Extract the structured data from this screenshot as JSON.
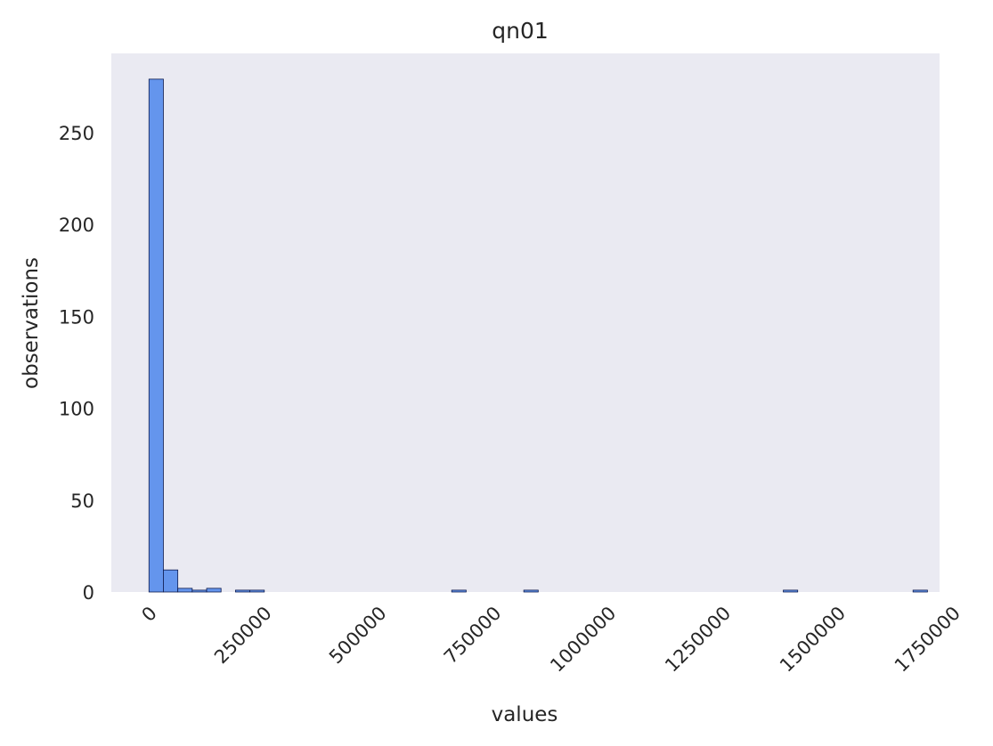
{
  "chart_data": {
    "type": "bar",
    "title": "qn01",
    "xlabel": "values",
    "ylabel": "observations",
    "xlim": [
      -82000,
      1722000
    ],
    "ylim": [
      0,
      293
    ],
    "grid": false,
    "background": "#eaeaf2",
    "bar_color": "#6495ed",
    "bar_edge_color": "#0d1a4d",
    "bin_width": 31400,
    "xticks": [
      0,
      250000,
      500000,
      750000,
      1000000,
      1250000,
      1500000,
      1750000
    ],
    "xtick_labels": [
      "0",
      "250000",
      "500000",
      "750000",
      "1000000",
      "1250000",
      "1500000",
      "1750000"
    ],
    "yticks": [
      0,
      50,
      100,
      150,
      200,
      250
    ],
    "ytick_labels": [
      "0",
      "50",
      "100",
      "150",
      "200",
      "250"
    ],
    "bins": [
      {
        "x0": 0,
        "x1": 31400,
        "count": 279
      },
      {
        "x0": 31400,
        "x1": 62800,
        "count": 12
      },
      {
        "x0": 62800,
        "x1": 94200,
        "count": 2
      },
      {
        "x0": 94200,
        "x1": 125600,
        "count": 1
      },
      {
        "x0": 125600,
        "x1": 157000,
        "count": 2
      },
      {
        "x0": 188400,
        "x1": 219800,
        "count": 1
      },
      {
        "x0": 219800,
        "x1": 251200,
        "count": 1
      },
      {
        "x0": 659400,
        "x1": 690800,
        "count": 1
      },
      {
        "x0": 816400,
        "x1": 847800,
        "count": 1
      },
      {
        "x0": 1381600,
        "x1": 1413000,
        "count": 1
      },
      {
        "x0": 1664200,
        "x1": 1695600,
        "count": 1
      }
    ]
  }
}
